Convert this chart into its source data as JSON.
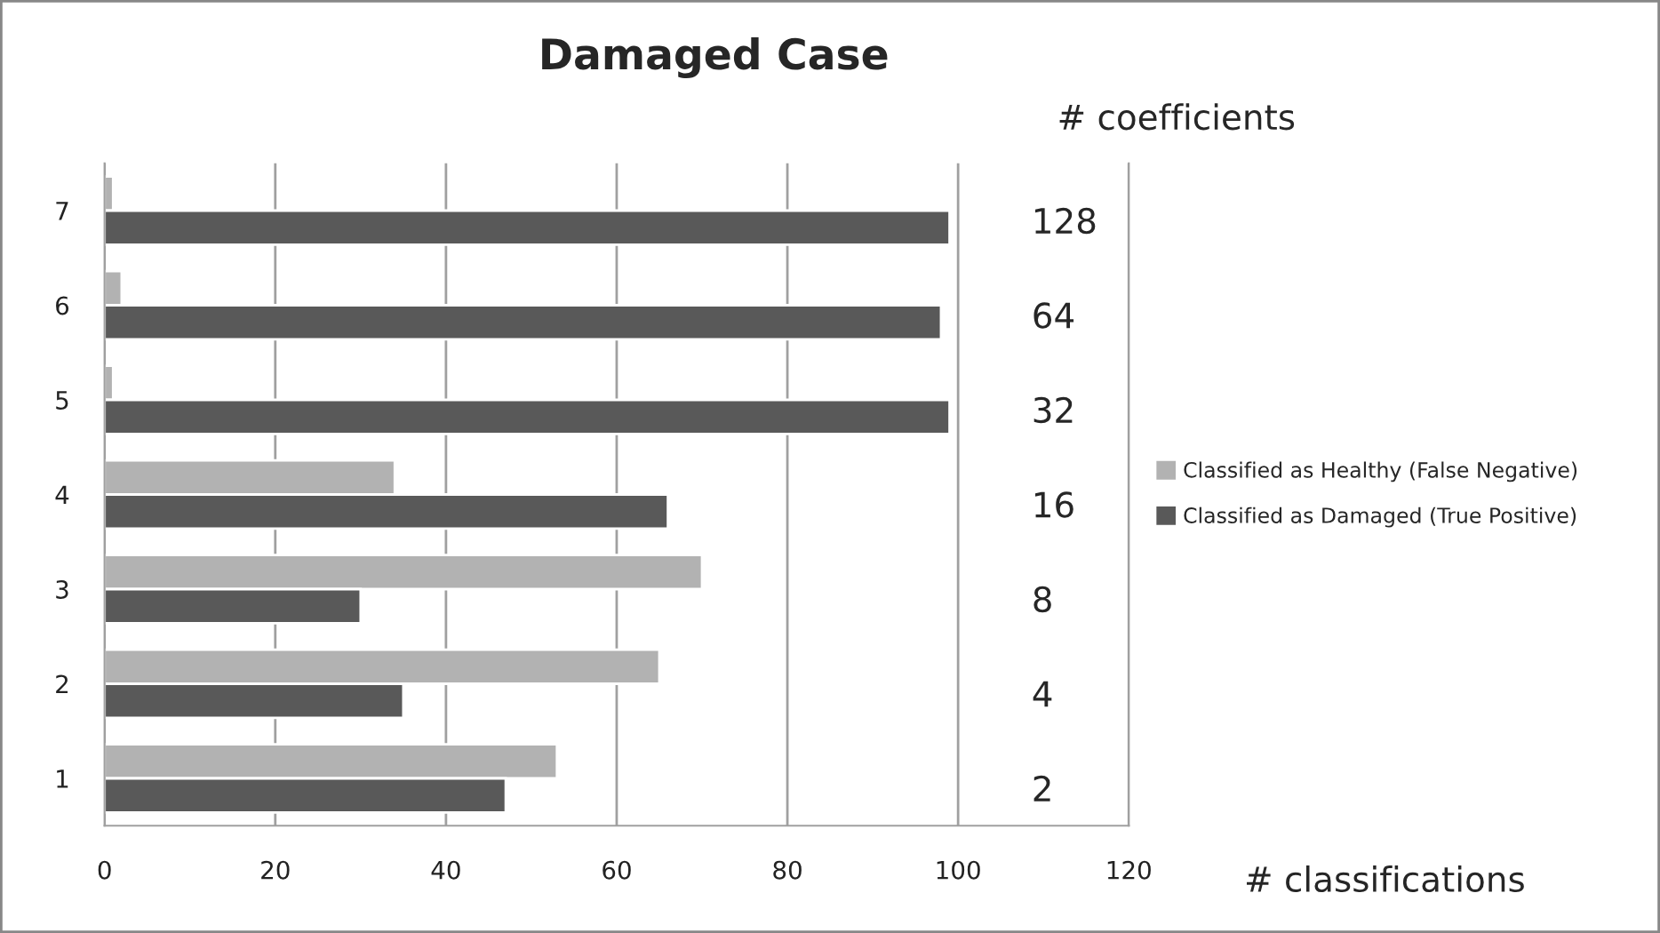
{
  "chart_data": {
    "type": "bar",
    "orientation": "horizontal",
    "title": "Damaged Case",
    "xlabel": "# classifications",
    "categories": [
      "7",
      "6",
      "5",
      "4",
      "3",
      "2",
      "1"
    ],
    "series": [
      {
        "name": "Classified as Healthy (False Negative)",
        "color": "#b2b2b2",
        "values": [
          1,
          2,
          1,
          34,
          70,
          65,
          53
        ]
      },
      {
        "name": "Classified as Damaged (True Positive)",
        "color": "#595959",
        "values": [
          99,
          98,
          99,
          66,
          30,
          35,
          47
        ]
      }
    ],
    "xlim": [
      0,
      120
    ],
    "xticks": [
      0,
      20,
      40,
      60,
      80,
      100,
      120
    ],
    "grid": "x",
    "legend": "right",
    "annotations": [
      "# coefficients",
      "128",
      "64",
      "32",
      "16",
      "8",
      "4",
      "2"
    ]
  }
}
